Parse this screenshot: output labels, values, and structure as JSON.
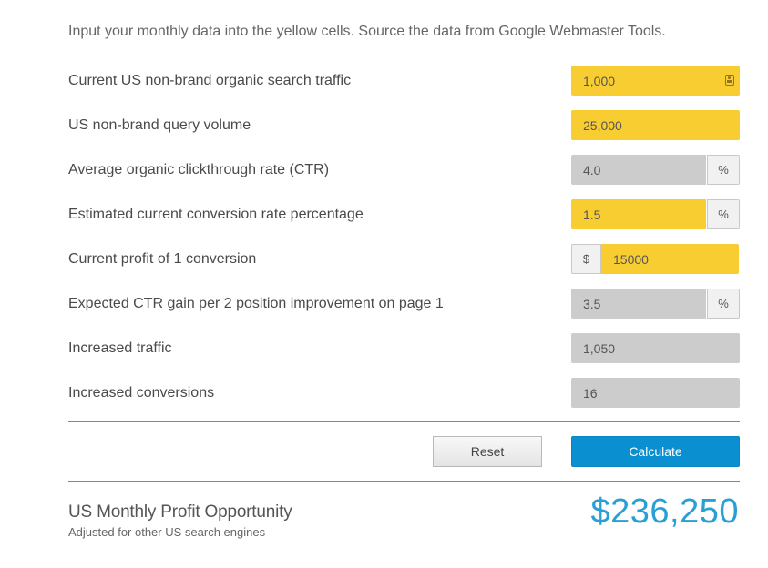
{
  "intro": "Input your monthly data into the yellow cells. Source the data from Google Webmaster Tools.",
  "rows": [
    {
      "label": "Current US non-brand organic search traffic",
      "value": "1,000",
      "icon": "contact-card-icon"
    },
    {
      "label": "US non-brand query volume",
      "value": "25,000"
    },
    {
      "label": "Average organic clickthrough rate (CTR)",
      "value": "4.0",
      "suffix": "%"
    },
    {
      "label": "Estimated current conversion rate percentage",
      "value": "1.5",
      "suffix": "%"
    },
    {
      "label": "Current profit of 1 conversion",
      "prefix": "$",
      "value": "15000"
    },
    {
      "label": "Expected CTR gain per 2 position improvement on page 1",
      "value": "3.5",
      "suffix": "%"
    },
    {
      "label": "Increased traffic",
      "value": "1,050"
    },
    {
      "label": "Increased conversions",
      "value": "16"
    }
  ],
  "buttons": {
    "reset": "Reset",
    "calculate": "Calculate"
  },
  "result": {
    "title": "US Monthly Profit Opportunity",
    "subtitle": "Adjusted for other US search engines",
    "value": "$236,250"
  },
  "colors": {
    "input_yellow": "#f8cd32",
    "readonly_gray": "#cccccc",
    "accent_blue": "#0a90d0",
    "result_blue": "#2a9fd6",
    "rule_teal": "#3aa3b8"
  }
}
